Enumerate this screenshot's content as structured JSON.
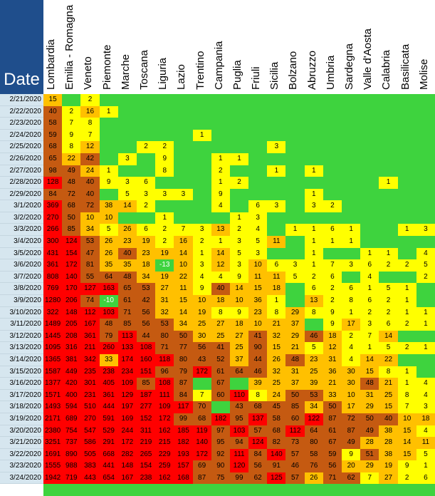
{
  "header": {
    "date_label": "Date"
  },
  "colors": {
    "zero": "#3ed33e",
    "low": "#ffff00",
    "mid": "#ffc000",
    "high": "#c55a11",
    "very_high": "#ff0000",
    "date_bg": "#d6e6ef",
    "header_bg": "#1f4e8c"
  },
  "regions": [
    "Lombardia",
    "Emilia - Romagna",
    "Veneto",
    "Piemonte",
    "Marche",
    "Toscana",
    "Liguria",
    "Lazio",
    "Trentino",
    "Campania",
    "Puglia",
    "Friuli",
    "Sicilia",
    "Bolzano",
    "Abruzzo",
    "Umbria",
    "Sardegna",
    "Valle d'Aosta",
    "Calabria",
    "Basilicata",
    "Molise"
  ],
  "rows": [
    {
      "date": "2/21/2020",
      "values": [
        "15",
        "",
        "2",
        "",
        "",
        "",
        "",
        "",
        "",
        "",
        "",
        "",
        "",
        "",
        "",
        "",
        "",
        "",
        "",
        "",
        ""
      ]
    },
    {
      "date": "2/22/2020",
      "values": [
        "40",
        "2",
        "16",
        "1",
        "",
        "",
        "",
        "",
        "",
        "",
        "",
        "",
        "",
        "",
        "",
        "",
        "",
        "",
        "",
        "",
        ""
      ]
    },
    {
      "date": "2/23/2020",
      "values": [
        "58",
        "7",
        "8",
        "",
        "",
        "",
        "",
        "",
        "",
        "",
        "",
        "",
        "",
        "",
        "",
        "",
        "",
        "",
        "",
        "",
        ""
      ]
    },
    {
      "date": "2/24/2020",
      "values": [
        "59",
        "9",
        "7",
        "",
        "",
        "",
        "",
        "",
        "1",
        "",
        "",
        "",
        "",
        "",
        "",
        "",
        "",
        "",
        "",
        "",
        ""
      ]
    },
    {
      "date": "2/25/2020",
      "values": [
        "68",
        "8",
        "12",
        "",
        "",
        "2",
        "2",
        "",
        "",
        "",
        "",
        "",
        "3",
        "",
        "",
        "",
        "",
        "",
        "",
        "",
        ""
      ]
    },
    {
      "date": "2/26/2020",
      "values": [
        "65",
        "22",
        "42",
        "",
        "3",
        "",
        "9",
        "",
        "",
        "1",
        "1",
        "",
        "",
        "",
        "",
        "",
        "",
        "",
        "",
        "",
        ""
      ]
    },
    {
      "date": "2/27/2020",
      "values": [
        "98",
        "49",
        "24",
        "1",
        "",
        "",
        "8",
        "",
        "",
        "2",
        "",
        "",
        "1",
        "",
        "1",
        "",
        "",
        "",
        "",
        "",
        ""
      ]
    },
    {
      "date": "2/28/2020",
      "values": [
        "128",
        "48",
        "40",
        "9",
        "3",
        "6",
        "",
        "",
        "",
        "1",
        "2",
        "",
        "",
        "",
        "",
        "",
        "",
        "",
        "1",
        "",
        ""
      ]
    },
    {
      "date": "2/29/2020",
      "values": [
        "84",
        "72",
        "40",
        "",
        "5",
        "3",
        "3",
        "3",
        "",
        "9",
        "",
        "",
        "",
        "",
        "1",
        "",
        "",
        "",
        "",
        "",
        ""
      ]
    },
    {
      "date": "3/1/2020",
      "values": [
        "369",
        "68",
        "72",
        "38",
        "14",
        "2",
        "",
        "",
        "",
        "4",
        "",
        "6",
        "3",
        "",
        "3",
        "2",
        "",
        "",
        "",
        "",
        ""
      ]
    },
    {
      "date": "3/2/2020",
      "values": [
        "270",
        "50",
        "10",
        "10",
        "",
        "",
        "1",
        "",
        "",
        "",
        "1",
        "3",
        "",
        "",
        "",
        "",
        "",
        "",
        "",
        "",
        ""
      ]
    },
    {
      "date": "3/3/2020",
      "values": [
        "266",
        "85",
        "34",
        "5",
        "26",
        "6",
        "2",
        "7",
        "3",
        "13",
        "2",
        "4",
        "",
        "1",
        "1",
        "6",
        "1",
        "",
        "",
        "1",
        "3"
      ]
    },
    {
      "date": "3/4/2020",
      "values": [
        "300",
        "124",
        "53",
        "26",
        "23",
        "19",
        "2",
        "16",
        "2",
        "1",
        "3",
        "5",
        "11",
        "",
        "1",
        "1",
        "1",
        "",
        "",
        "",
        ""
      ]
    },
    {
      "date": "3/5/2020",
      "values": [
        "431",
        "154",
        "47",
        "26",
        "40",
        "23",
        "19",
        "14",
        "1",
        "14",
        "5",
        "3",
        "",
        "",
        "1",
        "",
        "",
        "1",
        "1",
        "",
        "4"
      ]
    },
    {
      "date": "3/6/2020",
      "values": [
        "361",
        "172",
        "81",
        "35",
        "35",
        "18",
        "-13",
        "10",
        "3",
        "12",
        "3",
        "10",
        "6",
        "3",
        "1",
        "7",
        "3",
        "6",
        "2",
        "2",
        "5"
      ]
    },
    {
      "date": "3/7/2020",
      "values": [
        "808",
        "140",
        "55",
        "64",
        "48",
        "34",
        "19",
        "22",
        "4",
        "4",
        "9",
        "11",
        "11",
        "5",
        "2",
        "6",
        "",
        "4",
        "",
        "",
        "2"
      ]
    },
    {
      "date": "3/8/2020",
      "values": [
        "769",
        "170",
        "127",
        "163",
        "65",
        "53",
        "27",
        "11",
        "9",
        "40",
        "14",
        "15",
        "18",
        "",
        "6",
        "2",
        "6",
        "1",
        "5",
        "1",
        ""
      ]
    },
    {
      "date": "3/9/2020",
      "values": [
        "1280",
        "206",
        "74",
        "-10",
        "61",
        "42",
        "31",
        "15",
        "10",
        "18",
        "10",
        "36",
        "1",
        "",
        "13",
        "2",
        "8",
        "6",
        "2",
        "1",
        ""
      ]
    },
    {
      "date": "3/10/2020",
      "values": [
        "322",
        "148",
        "112",
        "103",
        "71",
        "56",
        "32",
        "14",
        "19",
        "8",
        "9",
        "23",
        "8",
        "29",
        "8",
        "9",
        "1",
        "2",
        "2",
        "1",
        "1"
      ]
    },
    {
      "date": "3/11/2020",
      "values": [
        "1489",
        "205",
        "167",
        "48",
        "85",
        "56",
        "53",
        "34",
        "25",
        "27",
        "18",
        "10",
        "21",
        "37",
        "",
        "9",
        "17",
        "3",
        "6",
        "2",
        "1"
      ]
    },
    {
      "date": "3/12/2020",
      "values": [
        "1445",
        "208",
        "361",
        "79",
        "113",
        "44",
        "80",
        "50",
        "30",
        "25",
        "27",
        "41",
        "32",
        "29",
        "46",
        "18",
        "2",
        "7",
        "14",
        "",
        ""
      ]
    },
    {
      "date": "3/13/2020",
      "values": [
        "1095",
        "316",
        "211",
        "260",
        "133",
        "108",
        "71",
        "77",
        "56",
        "41",
        "25",
        "90",
        "15",
        "21",
        "5",
        "12",
        "4",
        "1",
        "5",
        "2",
        "1"
      ]
    },
    {
      "date": "3/14/2020",
      "values": [
        "1365",
        "381",
        "342",
        "33",
        "174",
        "160",
        "118",
        "80",
        "43",
        "52",
        "37",
        "44",
        "26",
        "48",
        "23",
        "31",
        "4",
        "14",
        "22",
        "",
        ""
      ]
    },
    {
      "date": "3/15/2020",
      "values": [
        "1587",
        "449",
        "235",
        "238",
        "234",
        "151",
        "96",
        "79",
        "172",
        "61",
        "64",
        "46",
        "32",
        "31",
        "25",
        "36",
        "30",
        "15",
        "8",
        "1",
        ""
      ]
    },
    {
      "date": "3/16/2020",
      "values": [
        "1377",
        "420",
        "301",
        "405",
        "109",
        "85",
        "108",
        "87",
        "",
        "67",
        "",
        "39",
        "25",
        "37",
        "39",
        "21",
        "30",
        "48",
        "21",
        "1",
        "4"
      ]
    },
    {
      "date": "3/17/2020",
      "values": [
        "1571",
        "400",
        "231",
        "361",
        "129",
        "187",
        "111",
        "84",
        "7",
        "60",
        "110",
        "8",
        "24",
        "50",
        "53",
        "33",
        "10",
        "31",
        "25",
        "8",
        "4"
      ]
    },
    {
      "date": "3/18/2020",
      "values": [
        "1493",
        "594",
        "510",
        "444",
        "197",
        "277",
        "109",
        "117",
        "70",
        "",
        "43",
        "68",
        "45",
        "85",
        "34",
        "50",
        "17",
        "29",
        "15",
        "7",
        "3"
      ]
    },
    {
      "date": "3/19/2020",
      "values": [
        "2171",
        "689",
        "270",
        "591",
        "169",
        "152",
        "172",
        "99",
        "68",
        "182",
        "95",
        "137",
        "58",
        "60",
        "122",
        "87",
        "72",
        "50",
        "40",
        "10",
        "18"
      ]
    },
    {
      "date": "3/20/2020",
      "values": [
        "2380",
        "754",
        "547",
        "529",
        "244",
        "311",
        "162",
        "185",
        "119",
        "97",
        "103",
        "57",
        "68",
        "112",
        "64",
        "61",
        "87",
        "49",
        "38",
        "15",
        "4"
      ]
    },
    {
      "date": "3/21/2020",
      "values": [
        "3251",
        "737",
        "586",
        "291",
        "172",
        "219",
        "215",
        "182",
        "140",
        "95",
        "94",
        "124",
        "82",
        "73",
        "80",
        "67",
        "49",
        "28",
        "28",
        "14",
        "11"
      ]
    },
    {
      "date": "3/22/2020",
      "values": [
        "1691",
        "890",
        "505",
        "668",
        "282",
        "265",
        "229",
        "193",
        "172",
        "92",
        "111",
        "84",
        "140",
        "57",
        "58",
        "59",
        "9",
        "51",
        "38",
        "15",
        "5"
      ]
    },
    {
      "date": "3/23/2020",
      "values": [
        "1555",
        "988",
        "383",
        "441",
        "148",
        "154",
        "259",
        "157",
        "69",
        "90",
        "120",
        "56",
        "91",
        "46",
        "76",
        "56",
        "20",
        "29",
        "19",
        "9",
        "1"
      ]
    },
    {
      "date": "3/24/2020",
      "values": [
        "1942",
        "719",
        "443",
        "654",
        "167",
        "238",
        "162",
        "168",
        "87",
        "75",
        "99",
        "62",
        "125",
        "57",
        "26",
        "71",
        "62",
        "7",
        "27",
        "2",
        "6"
      ]
    }
  ]
}
